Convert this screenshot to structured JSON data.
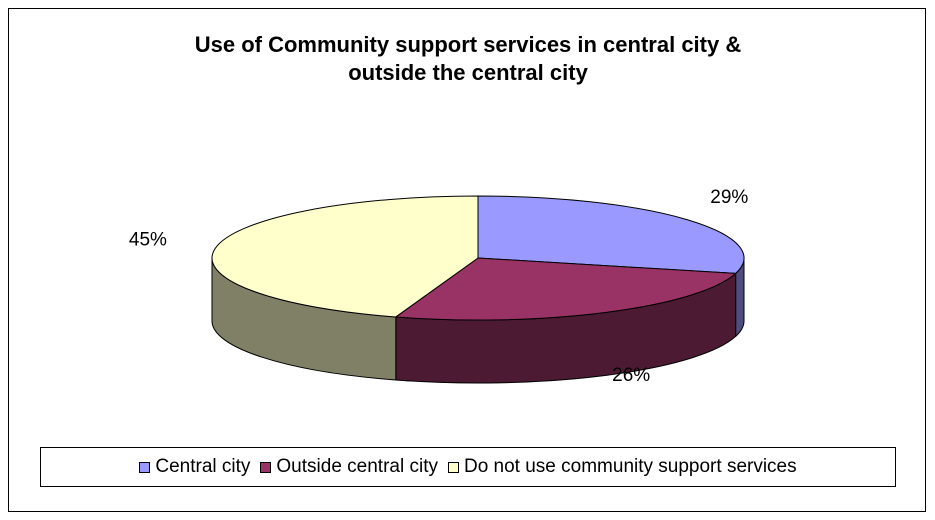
{
  "chart_data": {
    "type": "pie",
    "title_lines": [
      "Use of Community support services in central city &",
      "outside the central city"
    ],
    "categories": [
      "Central city",
      "Outside central city",
      "Do not use community support services"
    ],
    "values": [
      29,
      26,
      45
    ],
    "data_labels": [
      "29%",
      "26%",
      "45%"
    ],
    "colors": [
      "#9999FF",
      "#993366",
      "#FFFFCC"
    ],
    "side_colors": [
      "#4D4D80",
      "#4D1A33",
      "#808066"
    ],
    "legend_position": "bottom",
    "three_d": true
  }
}
